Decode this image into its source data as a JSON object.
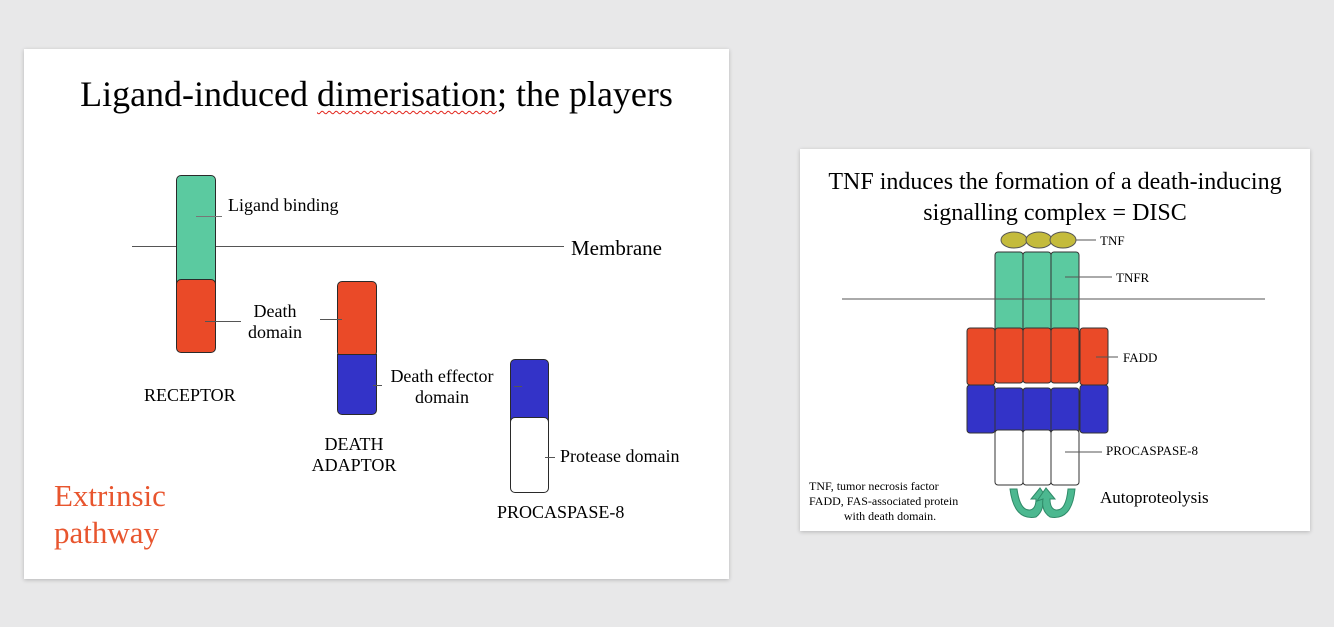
{
  "slide_left": {
    "title_part1": "Ligand-induced ",
    "title_misspelled": "dimerisation",
    "title_part2": "; the players",
    "membrane_label": "Membrane",
    "ligand_binding_label": "Ligand binding",
    "death_domain_label_line1": "Death",
    "death_domain_label_line2": "domain",
    "receptor_label": "RECEPTOR",
    "death_effector_label_line1": "Death effector",
    "death_effector_label_line2": "domain",
    "death_adaptor_label_line1": "DEATH",
    "death_adaptor_label_line2": "ADAPTOR",
    "protease_domain_label": "Protease domain",
    "procaspase_label": "PROCASPASE-8",
    "pathway_line1": "Extrinsic",
    "pathway_line2": "pathway",
    "colors": {
      "ligand_binding": "#5bcaa0",
      "death_domain": "#ea4a28",
      "death_effector_domain": "#3333c8",
      "protease_domain": "#ffffff",
      "pathway_text": "#e8552e"
    }
  },
  "slide_right": {
    "title": "TNF induces the formation of a death-inducing signalling complex = DISC",
    "tnf_label": "TNF",
    "tnfr_label": "TNFR",
    "fadd_label": "FADD",
    "procaspase_label": "PROCASPASE-8",
    "autoproteolysis_label": "Autoproteolysis",
    "legend_line1": "TNF, tumor necrosis factor",
    "legend_line2": "FADD, FAS-associated protein",
    "legend_line3": "with death domain.",
    "colors": {
      "tnf": "#c4bb3c",
      "tnfr": "#5bcaa0",
      "fadd_death_domain": "#ea4a28",
      "death_effector_domain": "#3333c8",
      "arrow": "#4cb890"
    }
  }
}
